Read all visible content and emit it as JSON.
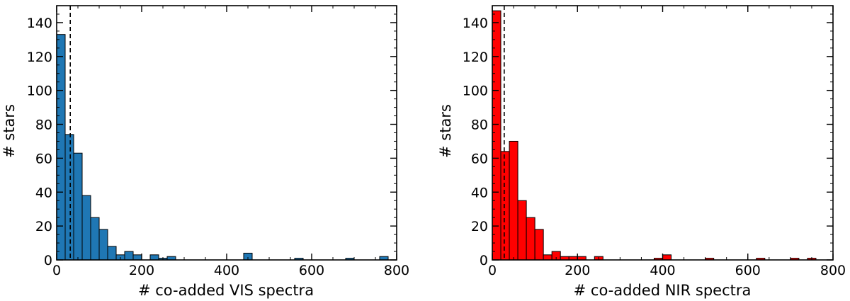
{
  "chart_data": [
    {
      "type": "bar",
      "xlabel": "# co-added VIS spectra",
      "ylabel": "# stars",
      "xlim": [
        0,
        800
      ],
      "ylim": [
        0,
        150
      ],
      "xticks": [
        0,
        200,
        400,
        600,
        800
      ],
      "yticks": [
        0,
        20,
        40,
        60,
        80,
        100,
        120,
        140
      ],
      "bar_color": "#1f77b4",
      "bin_width": 20,
      "threshold_x": 32,
      "bars": [
        {
          "x0": 0,
          "value": 133
        },
        {
          "x0": 20,
          "value": 74
        },
        {
          "x0": 40,
          "value": 63
        },
        {
          "x0": 60,
          "value": 38
        },
        {
          "x0": 80,
          "value": 25
        },
        {
          "x0": 100,
          "value": 18
        },
        {
          "x0": 120,
          "value": 8
        },
        {
          "x0": 140,
          "value": 3
        },
        {
          "x0": 160,
          "value": 5
        },
        {
          "x0": 180,
          "value": 3
        },
        {
          "x0": 220,
          "value": 3
        },
        {
          "x0": 240,
          "value": 1
        },
        {
          "x0": 260,
          "value": 2
        },
        {
          "x0": 440,
          "value": 4
        },
        {
          "x0": 560,
          "value": 1
        },
        {
          "x0": 680,
          "value": 1
        },
        {
          "x0": 760,
          "value": 2
        }
      ]
    },
    {
      "type": "bar",
      "xlabel": "# co-added NIR spectra",
      "ylabel": "# stars",
      "xlim": [
        0,
        800
      ],
      "ylim": [
        0,
        150
      ],
      "xticks": [
        0,
        200,
        400,
        600,
        800
      ],
      "yticks": [
        0,
        20,
        40,
        60,
        80,
        100,
        120,
        140
      ],
      "bar_color": "#ff0000",
      "bin_width": 20,
      "threshold_x": 28,
      "bars": [
        {
          "x0": 0,
          "value": 147
        },
        {
          "x0": 20,
          "value": 64
        },
        {
          "x0": 40,
          "value": 70
        },
        {
          "x0": 60,
          "value": 35
        },
        {
          "x0": 80,
          "value": 25
        },
        {
          "x0": 100,
          "value": 18
        },
        {
          "x0": 120,
          "value": 3
        },
        {
          "x0": 140,
          "value": 5
        },
        {
          "x0": 160,
          "value": 2
        },
        {
          "x0": 180,
          "value": 2
        },
        {
          "x0": 200,
          "value": 2
        },
        {
          "x0": 240,
          "value": 2
        },
        {
          "x0": 380,
          "value": 1
        },
        {
          "x0": 400,
          "value": 3
        },
        {
          "x0": 500,
          "value": 1
        },
        {
          "x0": 620,
          "value": 1
        },
        {
          "x0": 700,
          "value": 1
        },
        {
          "x0": 740,
          "value": 1
        }
      ]
    }
  ]
}
